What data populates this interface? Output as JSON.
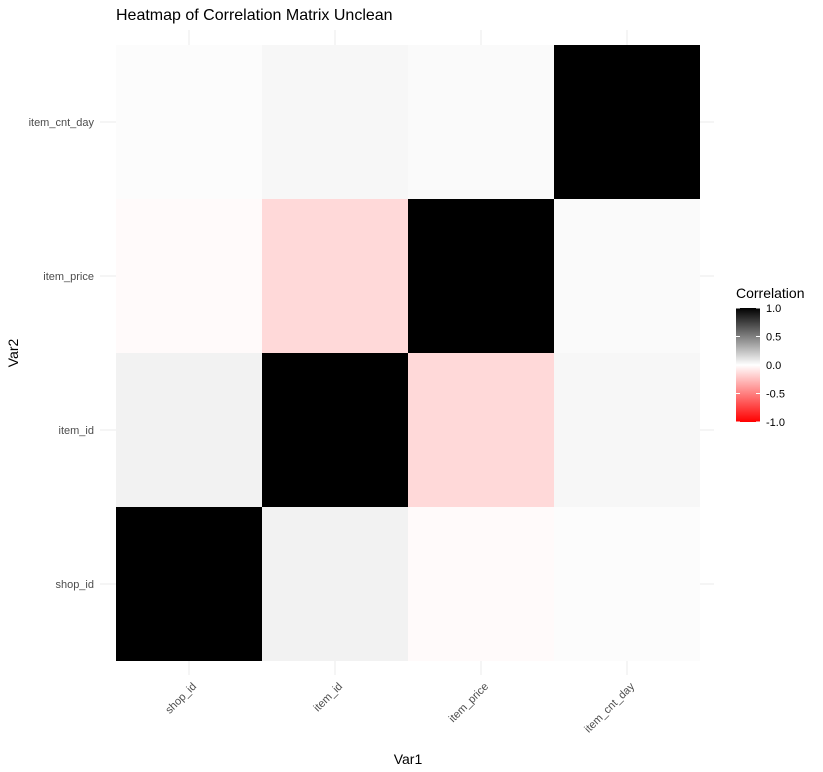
{
  "chart_data": {
    "type": "heatmap",
    "title": "Heatmap of Correlation Matrix Unclean",
    "xlabel": "Var1",
    "ylabel": "Var2",
    "x_categories": [
      "shop_id",
      "item_id",
      "item_price",
      "item_cnt_day"
    ],
    "y_categories": [
      "shop_id",
      "item_id",
      "item_price",
      "item_cnt_day"
    ],
    "values": [
      [
        1.0,
        0.05,
        -0.02,
        0.01
      ],
      [
        0.05,
        1.0,
        -0.15,
        0.03
      ],
      [
        -0.02,
        -0.15,
        1.0,
        0.02
      ],
      [
        0.01,
        0.03,
        0.02,
        1.0
      ]
    ],
    "color_scale": {
      "low": "#ff0000",
      "mid": "#ffffff",
      "high": "#000000",
      "limits": [
        -1,
        1
      ]
    },
    "legend": {
      "title": "Correlation",
      "ticks": [
        1.0,
        0.5,
        0.0,
        -0.5,
        -1.0
      ],
      "tick_labels": [
        "1.0",
        "0.5",
        "0.0",
        "-0.5",
        "-1.0"
      ],
      "position": "right"
    },
    "grid": true
  }
}
